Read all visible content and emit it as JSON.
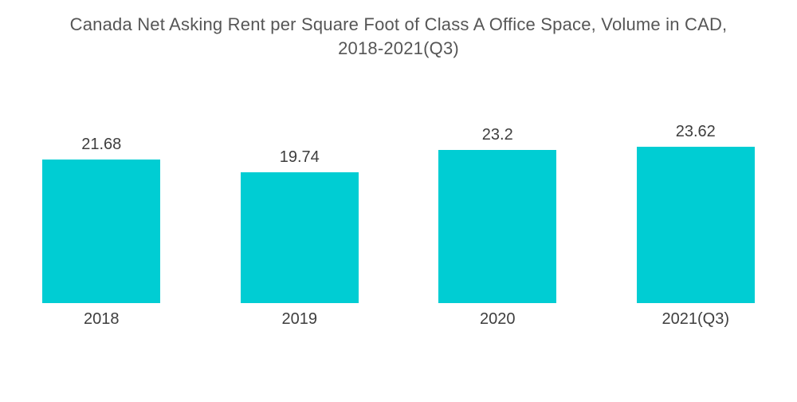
{
  "page": {
    "title_line1": "Canada Net Asking Rent per Square Foot of Class A Office Space, Volume in CAD,",
    "title_line2": "2018-2021(Q3)"
  },
  "chart_data": {
    "type": "bar",
    "title": "Canada Net Asking Rent per Square Foot of Class A Office Space, Volume in CAD, 2018-2021(Q3)",
    "categories": [
      "2018",
      "2019",
      "2020",
      "2021(Q3)"
    ],
    "values": [
      21.68,
      19.74,
      23.2,
      23.62
    ],
    "value_labels": [
      "21.68",
      "19.74",
      "23.2",
      "23.62"
    ],
    "xlabel": "",
    "ylabel": "",
    "ylim": [
      0,
      23.62
    ],
    "grid": false,
    "legend": false,
    "bar_color_hex": "#00CDD3",
    "text_color_hex": "#3E3E3E",
    "title_color_hex": "#565656",
    "background_hex": "#FFFFFF"
  }
}
